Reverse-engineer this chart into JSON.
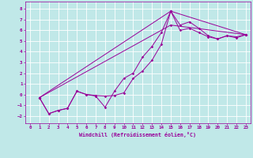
{
  "xlabel": "Windchill (Refroidissement éolien,°C)",
  "bg_color": "#c0e8e8",
  "grid_color": "#ffffff",
  "line_color": "#990099",
  "xlim": [
    -0.5,
    23.5
  ],
  "ylim": [
    -2.7,
    8.7
  ],
  "xticks": [
    0,
    1,
    2,
    3,
    4,
    5,
    6,
    7,
    8,
    9,
    10,
    11,
    12,
    13,
    14,
    15,
    16,
    17,
    18,
    19,
    20,
    21,
    22,
    23
  ],
  "yticks": [
    -2,
    -1,
    0,
    1,
    2,
    3,
    4,
    5,
    6,
    7,
    8
  ],
  "line1_x": [
    1,
    2,
    3,
    4,
    5,
    6,
    7,
    8,
    9,
    10,
    11,
    12,
    13,
    14,
    15,
    16,
    17,
    18,
    19,
    20,
    21,
    22,
    23
  ],
  "line1_y": [
    -0.3,
    -1.8,
    -1.5,
    -1.3,
    0.3,
    0.0,
    -0.15,
    -1.2,
    0.3,
    1.5,
    2.0,
    3.5,
    4.5,
    5.8,
    7.8,
    6.5,
    6.8,
    6.2,
    5.5,
    5.2,
    5.5,
    5.4,
    5.6
  ],
  "line2_x": [
    1,
    2,
    3,
    4,
    5,
    6,
    7,
    8,
    9,
    10,
    11,
    12,
    13,
    14,
    15,
    16,
    17,
    18,
    19,
    20,
    21,
    22,
    23
  ],
  "line2_y": [
    -0.3,
    -1.8,
    -1.5,
    -1.3,
    0.3,
    0.0,
    -0.1,
    -0.15,
    -0.1,
    0.15,
    1.5,
    2.2,
    3.2,
    4.7,
    7.8,
    6.0,
    6.2,
    5.8,
    5.4,
    5.2,
    5.5,
    5.3,
    5.6
  ],
  "line3_x": [
    1,
    15,
    23
  ],
  "line3_y": [
    -0.3,
    7.8,
    5.6
  ],
  "line4_x": [
    1,
    15,
    23
  ],
  "line4_y": [
    -0.3,
    6.5,
    5.6
  ]
}
